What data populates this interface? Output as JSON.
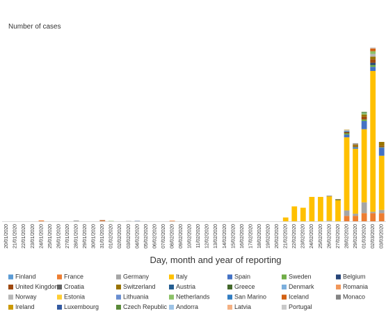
{
  "chart_data": {
    "type": "stacked-bar",
    "y_axis_label": "Number of cases",
    "x_axis_label": "Day, month and year of reporting",
    "ylim": [
      0,
      650
    ],
    "categories": [
      "20/01/2020",
      "21/01/2020",
      "22/01/2020",
      "23/01/2020",
      "24/01/2020",
      "25/01/2020",
      "26/01/2020",
      "27/01/2020",
      "28/01/2020",
      "29/01/2020",
      "30/01/2020",
      "31/01/2020",
      "01/02/2020",
      "02/02/2020",
      "03/02/2020",
      "04/02/2020",
      "05/02/2020",
      "06/02/2020",
      "07/02/2020",
      "08/02/2020",
      "09/02/2020",
      "10/02/2020",
      "11/02/2020",
      "12/02/2020",
      "13/02/2020",
      "14/02/2020",
      "15/02/2020",
      "16/02/2020",
      "17/02/2020",
      "18/02/2020",
      "19/02/2020",
      "20/02/2020",
      "21/02/2020",
      "22/02/2020",
      "23/02/2020",
      "24/02/2020",
      "25/02/2020",
      "26/02/2020",
      "27/02/2020",
      "28/02/2020",
      "29/02/2020",
      "01/03/2020",
      "02/03/2020",
      "03/03/2020"
    ],
    "series": [
      {
        "name": "Finland",
        "color": "#5b9bd5",
        "values": [
          0,
          0,
          0,
          0,
          0,
          0,
          0,
          0,
          0,
          0,
          0,
          0,
          0,
          0,
          0,
          0,
          0,
          0,
          0,
          0,
          0,
          0,
          0,
          0,
          0,
          0,
          0,
          0,
          0,
          0,
          0,
          0,
          0,
          0,
          0,
          0,
          0,
          0,
          0,
          0,
          0,
          0,
          0,
          0
        ]
      },
      {
        "name": "France",
        "color": "#ed7d31",
        "values": [
          0,
          0,
          0,
          0,
          3,
          0,
          0,
          0,
          0,
          0,
          0,
          2,
          0,
          0,
          0,
          0,
          0,
          0,
          0,
          2,
          0,
          0,
          0,
          0,
          0,
          0,
          0,
          0,
          0,
          0,
          0,
          0,
          0,
          0,
          0,
          0,
          0,
          0,
          0,
          20,
          20,
          30,
          30,
          30
        ]
      },
      {
        "name": "Germany",
        "color": "#a5a5a5",
        "values": [
          0,
          0,
          0,
          0,
          0,
          0,
          0,
          0,
          3,
          0,
          0,
          0,
          0,
          0,
          1,
          0,
          0,
          0,
          0,
          0,
          0,
          0,
          0,
          0,
          0,
          0,
          0,
          0,
          0,
          0,
          0,
          0,
          0,
          0,
          0,
          0,
          0,
          2,
          0,
          20,
          8,
          40,
          5,
          12
        ]
      },
      {
        "name": "Italy",
        "color": "#ffc000",
        "values": [
          0,
          0,
          0,
          0,
          0,
          0,
          0,
          0,
          0,
          0,
          0,
          0,
          0,
          0,
          0,
          0,
          0,
          0,
          0,
          0,
          0,
          0,
          0,
          0,
          0,
          0,
          0,
          0,
          0,
          0,
          0,
          0,
          14,
          55,
          50,
          90,
          90,
          90,
          78,
          270,
          240,
          270,
          520,
          200
        ]
      },
      {
        "name": "Spain",
        "color": "#4472c4",
        "values": [
          0,
          0,
          0,
          0,
          0,
          0,
          0,
          0,
          0,
          0,
          0,
          0,
          0,
          0,
          0,
          0,
          0,
          0,
          0,
          0,
          0,
          0,
          0,
          0,
          0,
          0,
          0,
          0,
          0,
          0,
          0,
          0,
          0,
          0,
          0,
          0,
          0,
          0,
          0,
          10,
          5,
          30,
          15,
          30
        ]
      },
      {
        "name": "Sweden",
        "color": "#70ad47",
        "values": [
          0,
          0,
          0,
          0,
          0,
          0,
          0,
          0,
          0,
          0,
          0,
          0,
          1,
          0,
          0,
          0,
          0,
          0,
          0,
          0,
          0,
          0,
          0,
          0,
          0,
          0,
          0,
          0,
          0,
          0,
          0,
          0,
          0,
          0,
          0,
          0,
          0,
          0,
          0,
          5,
          2,
          6,
          7,
          2
        ]
      },
      {
        "name": "Belgium",
        "color": "#264478",
        "values": [
          0,
          0,
          0,
          0,
          0,
          0,
          0,
          0,
          0,
          0,
          0,
          0,
          0,
          0,
          0,
          1,
          0,
          0,
          0,
          0,
          0,
          0,
          0,
          0,
          0,
          0,
          0,
          0,
          0,
          0,
          0,
          0,
          0,
          0,
          0,
          0,
          0,
          0,
          0,
          0,
          0,
          0,
          8,
          0
        ]
      },
      {
        "name": "United Kingdom",
        "color": "#9e480e",
        "values": [
          0,
          0,
          0,
          0,
          0,
          0,
          0,
          0,
          0,
          0,
          0,
          2,
          0,
          0,
          0,
          0,
          0,
          0,
          0,
          0,
          0,
          0,
          0,
          0,
          0,
          0,
          0,
          0,
          0,
          0,
          0,
          0,
          0,
          0,
          0,
          0,
          0,
          0,
          0,
          4,
          3,
          10,
          13,
          4
        ]
      },
      {
        "name": "Croatia",
        "color": "#636363",
        "values": [
          0,
          0,
          0,
          0,
          0,
          0,
          0,
          0,
          0,
          0,
          0,
          0,
          0,
          0,
          0,
          0,
          0,
          0,
          0,
          0,
          0,
          0,
          0,
          0,
          0,
          0,
          0,
          0,
          0,
          0,
          0,
          0,
          0,
          0,
          0,
          0,
          0,
          2,
          0,
          0,
          0,
          0,
          0,
          0
        ]
      },
      {
        "name": "Switzerland",
        "color": "#997300",
        "values": [
          0,
          0,
          0,
          0,
          0,
          0,
          0,
          0,
          0,
          0,
          0,
          0,
          0,
          0,
          0,
          0,
          0,
          0,
          0,
          0,
          0,
          0,
          0,
          0,
          0,
          0,
          0,
          0,
          0,
          0,
          0,
          0,
          0,
          0,
          0,
          0,
          0,
          0,
          0,
          0,
          5,
          8,
          10,
          15
        ]
      },
      {
        "name": "Austria",
        "color": "#255e91",
        "values": [
          0,
          0,
          0,
          0,
          0,
          0,
          0,
          0,
          0,
          0,
          0,
          0,
          0,
          0,
          0,
          0,
          0,
          0,
          0,
          0,
          0,
          0,
          0,
          0,
          0,
          0,
          0,
          0,
          0,
          0,
          0,
          0,
          0,
          0,
          0,
          0,
          0,
          0,
          0,
          3,
          0,
          0,
          0,
          0
        ]
      },
      {
        "name": "Greece",
        "color": "#43682b",
        "values": [
          0,
          0,
          0,
          0,
          0,
          0,
          0,
          0,
          0,
          0,
          0,
          0,
          0,
          0,
          0,
          0,
          0,
          0,
          0,
          0,
          0,
          0,
          0,
          0,
          0,
          0,
          0,
          0,
          0,
          0,
          0,
          0,
          0,
          0,
          0,
          0,
          0,
          0,
          3,
          0,
          0,
          0,
          0,
          0
        ]
      },
      {
        "name": "Denmark",
        "color": "#7cafdd",
        "values": [
          0,
          0,
          0,
          0,
          0,
          0,
          0,
          0,
          0,
          0,
          0,
          0,
          0,
          0,
          0,
          0,
          0,
          0,
          0,
          0,
          0,
          0,
          0,
          0,
          0,
          0,
          0,
          0,
          0,
          0,
          0,
          0,
          0,
          0,
          0,
          0,
          0,
          0,
          0,
          1,
          0,
          0,
          0,
          0
        ]
      },
      {
        "name": "Romania",
        "color": "#f1975a",
        "values": [
          0,
          0,
          0,
          0,
          0,
          0,
          0,
          0,
          0,
          0,
          0,
          0,
          0,
          0,
          0,
          0,
          0,
          0,
          0,
          0,
          0,
          0,
          0,
          0,
          0,
          0,
          0,
          0,
          0,
          0,
          0,
          0,
          0,
          0,
          0,
          0,
          0,
          0,
          1,
          0,
          0,
          0,
          0,
          0
        ]
      },
      {
        "name": "Norway",
        "color": "#b7b7b7",
        "values": [
          0,
          0,
          0,
          0,
          0,
          0,
          0,
          0,
          0,
          0,
          0,
          0,
          0,
          0,
          0,
          0,
          0,
          0,
          0,
          0,
          0,
          0,
          0,
          0,
          0,
          0,
          0,
          0,
          0,
          0,
          0,
          0,
          0,
          0,
          0,
          0,
          0,
          0,
          0,
          5,
          0,
          0,
          10,
          0
        ]
      },
      {
        "name": "Estonia",
        "color": "#ffcd33",
        "values": [
          0,
          0,
          0,
          0,
          0,
          0,
          0,
          0,
          0,
          0,
          0,
          0,
          0,
          0,
          0,
          0,
          0,
          0,
          0,
          0,
          0,
          0,
          0,
          0,
          0,
          0,
          0,
          0,
          0,
          0,
          0,
          0,
          0,
          0,
          0,
          0,
          0,
          0,
          0,
          1,
          0,
          0,
          0,
          0
        ]
      },
      {
        "name": "Lithuania",
        "color": "#698ed0",
        "values": [
          0,
          0,
          0,
          0,
          0,
          0,
          0,
          0,
          0,
          0,
          0,
          0,
          0,
          0,
          0,
          0,
          0,
          0,
          0,
          0,
          0,
          0,
          0,
          0,
          0,
          0,
          0,
          0,
          0,
          0,
          0,
          0,
          0,
          0,
          0,
          0,
          0,
          0,
          0,
          0,
          1,
          0,
          0,
          0
        ]
      },
      {
        "name": "Netherlands",
        "color": "#8cc168",
        "values": [
          0,
          0,
          0,
          0,
          0,
          0,
          0,
          0,
          0,
          0,
          0,
          0,
          0,
          0,
          0,
          0,
          0,
          0,
          0,
          0,
          0,
          0,
          0,
          0,
          0,
          0,
          0,
          0,
          0,
          0,
          0,
          0,
          0,
          0,
          0,
          0,
          0,
          0,
          0,
          0,
          0,
          6,
          10,
          0
        ]
      },
      {
        "name": "San Marino",
        "color": "#327dc2",
        "values": [
          0,
          0,
          0,
          0,
          0,
          0,
          0,
          0,
          0,
          0,
          0,
          0,
          0,
          0,
          0,
          0,
          0,
          0,
          0,
          0,
          0,
          0,
          0,
          0,
          0,
          0,
          0,
          0,
          0,
          0,
          0,
          0,
          0,
          0,
          0,
          0,
          0,
          0,
          0,
          0,
          0,
          1,
          0,
          0
        ]
      },
      {
        "name": "Iceland",
        "color": "#d26012",
        "values": [
          0,
          0,
          0,
          0,
          0,
          0,
          0,
          0,
          0,
          0,
          0,
          0,
          0,
          0,
          0,
          0,
          0,
          0,
          0,
          0,
          0,
          0,
          0,
          0,
          0,
          0,
          0,
          0,
          0,
          0,
          0,
          0,
          0,
          0,
          0,
          0,
          0,
          0,
          0,
          0,
          1,
          0,
          10,
          0
        ]
      },
      {
        "name": "Monaco",
        "color": "#848484",
        "values": [
          0,
          0,
          0,
          0,
          0,
          0,
          0,
          0,
          0,
          0,
          0,
          0,
          0,
          0,
          0,
          0,
          0,
          0,
          0,
          0,
          0,
          0,
          0,
          0,
          0,
          0,
          0,
          0,
          0,
          0,
          0,
          0,
          0,
          0,
          0,
          0,
          0,
          0,
          0,
          0,
          1,
          0,
          0,
          0
        ]
      },
      {
        "name": "Ireland",
        "color": "#cc9a00",
        "values": [
          0,
          0,
          0,
          0,
          0,
          0,
          0,
          0,
          0,
          0,
          0,
          0,
          0,
          0,
          0,
          0,
          0,
          0,
          0,
          0,
          0,
          0,
          0,
          0,
          0,
          0,
          0,
          0,
          0,
          0,
          0,
          0,
          0,
          0,
          0,
          0,
          0,
          0,
          0,
          0,
          1,
          0,
          0,
          0
        ]
      },
      {
        "name": "Luxembourg",
        "color": "#335aa1",
        "values": [
          0,
          0,
          0,
          0,
          0,
          0,
          0,
          0,
          0,
          0,
          0,
          0,
          0,
          0,
          0,
          0,
          0,
          0,
          0,
          0,
          0,
          0,
          0,
          0,
          0,
          0,
          0,
          0,
          0,
          0,
          0,
          0,
          0,
          0,
          0,
          0,
          0,
          0,
          0,
          0,
          1,
          0,
          0,
          0
        ]
      },
      {
        "name": "Czech Republic",
        "color": "#5a8a39",
        "values": [
          0,
          0,
          0,
          0,
          0,
          0,
          0,
          0,
          0,
          0,
          0,
          0,
          0,
          0,
          0,
          0,
          0,
          0,
          0,
          0,
          0,
          0,
          0,
          0,
          0,
          0,
          0,
          0,
          0,
          0,
          0,
          0,
          0,
          0,
          0,
          0,
          0,
          0,
          0,
          0,
          0,
          3,
          0,
          0
        ]
      },
      {
        "name": "Andorra",
        "color": "#9dc3e6",
        "values": [
          0,
          0,
          0,
          0,
          0,
          0,
          0,
          0,
          0,
          0,
          0,
          0,
          0,
          0,
          0,
          0,
          0,
          0,
          0,
          0,
          0,
          0,
          0,
          0,
          0,
          0,
          0,
          0,
          0,
          0,
          0,
          0,
          0,
          0,
          0,
          0,
          0,
          0,
          0,
          0,
          0,
          0,
          1,
          0
        ]
      },
      {
        "name": "Latvia",
        "color": "#f4b183",
        "values": [
          0,
          0,
          0,
          0,
          0,
          0,
          0,
          0,
          0,
          0,
          0,
          0,
          0,
          0,
          0,
          0,
          0,
          0,
          0,
          0,
          0,
          0,
          0,
          0,
          0,
          0,
          0,
          0,
          0,
          0,
          0,
          0,
          0,
          0,
          0,
          0,
          0,
          0,
          0,
          0,
          0,
          0,
          1,
          0
        ]
      },
      {
        "name": "Portugal",
        "color": "#c9c9c9",
        "values": [
          0,
          0,
          0,
          0,
          0,
          0,
          0,
          0,
          0,
          0,
          0,
          0,
          0,
          0,
          0,
          0,
          0,
          0,
          0,
          0,
          0,
          0,
          0,
          0,
          0,
          0,
          0,
          0,
          0,
          0,
          0,
          0,
          0,
          0,
          0,
          0,
          0,
          0,
          0,
          0,
          0,
          0,
          2,
          0
        ]
      }
    ]
  }
}
